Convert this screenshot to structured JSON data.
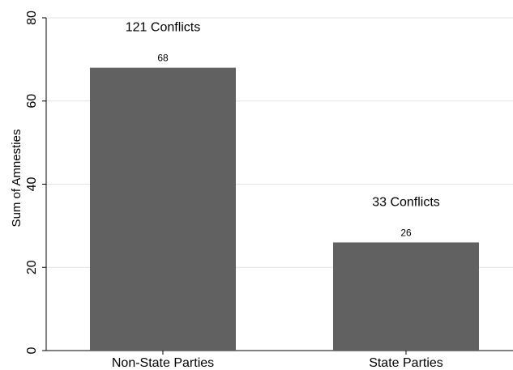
{
  "chart_data": {
    "type": "bar",
    "categories": [
      "Non-State Parties",
      "State Parties"
    ],
    "values": [
      68,
      26
    ],
    "data_labels": [
      "68",
      "26"
    ],
    "annotations": [
      "121 Conflicts",
      "33 Conflicts"
    ],
    "ylabel": "Sum of Amnesties",
    "xlabel": "",
    "ylim": [
      0,
      80
    ],
    "yticks": [
      0,
      20,
      40,
      60,
      80
    ],
    "grid": true,
    "bar_color": "#616161"
  }
}
